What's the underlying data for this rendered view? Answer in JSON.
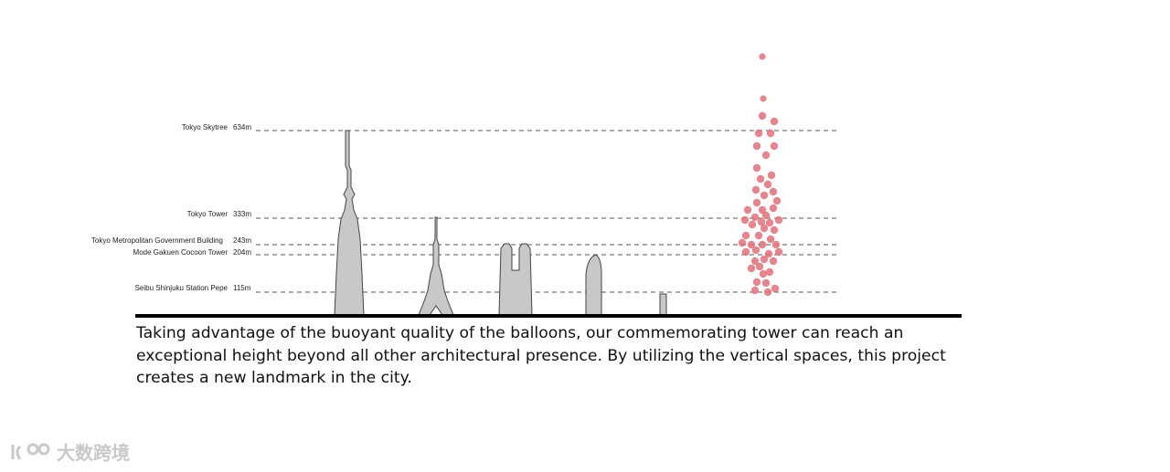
{
  "references": [
    {
      "name": "Tokyo Skytree",
      "height": "634m"
    },
    {
      "name": "Tokyo Tower",
      "height": "333m"
    },
    {
      "name": "Tokyo Metropolitan Government Building",
      "height": "243m"
    },
    {
      "name": "Mode Gakuen Cocoon Tower",
      "height": "204m"
    },
    {
      "name": "Seibu Shinjuku Station Pepe",
      "height": "115m"
    }
  ],
  "caption": "Taking advantage of the buoyant quality of the balloons, our commemorating tower can reach an exceptional height beyond all other architectural presence. By utilizing the vertical spaces, this project creates a new landmark in the city.",
  "watermark": "大数跨境",
  "colors": {
    "building": "#c8c8c8",
    "outline": "#444444",
    "balloon": "#e0707a",
    "ground": "#000000",
    "guide": "#555555"
  }
}
